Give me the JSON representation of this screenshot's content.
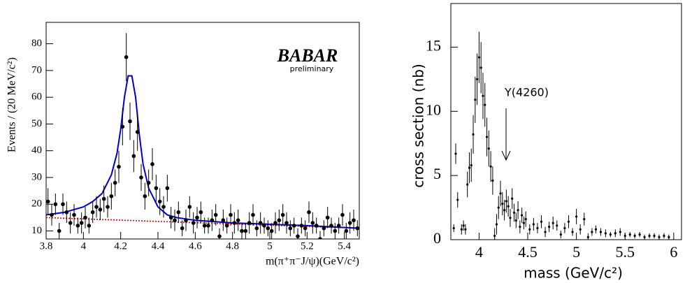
{
  "chart_data": [
    {
      "type": "errorbar",
      "y_label": "Events / (20 MeV/c²)",
      "x_label": "m(π⁺π⁻J/ψ)(GeV/c²)",
      "annotations": [
        "BABAR",
        "preliminary"
      ],
      "xlim": [
        3.8,
        5.48
      ],
      "ylim": [
        7,
        88
      ],
      "xticks": [
        3.8,
        4,
        4.2,
        4.4,
        4.6,
        4.8,
        5,
        5.2,
        5.4
      ],
      "yticks": [
        10,
        20,
        30,
        40,
        50,
        60,
        70,
        80
      ],
      "color": "#000000",
      "x": [
        3.81,
        3.83,
        3.85,
        3.87,
        3.89,
        3.91,
        3.93,
        3.95,
        3.97,
        3.99,
        4.01,
        4.03,
        4.05,
        4.07,
        4.09,
        4.11,
        4.13,
        4.15,
        4.17,
        4.19,
        4.21,
        4.23,
        4.25,
        4.27,
        4.29,
        4.31,
        4.33,
        4.35,
        4.37,
        4.39,
        4.41,
        4.43,
        4.45,
        4.47,
        4.49,
        4.51,
        4.53,
        4.55,
        4.57,
        4.59,
        4.61,
        4.63,
        4.65,
        4.67,
        4.69,
        4.71,
        4.73,
        4.75,
        4.77,
        4.79,
        4.81,
        4.83,
        4.85,
        4.87,
        4.89,
        4.91,
        4.93,
        4.95,
        4.97,
        4.99,
        5.01,
        5.03,
        5.05,
        5.07,
        5.09,
        5.11,
        5.13,
        5.15,
        5.17,
        5.19,
        5.21,
        5.23,
        5.25,
        5.27,
        5.29,
        5.31,
        5.33,
        5.35,
        5.37,
        5.39,
        5.41,
        5.43,
        5.45,
        5.47
      ],
      "values": [
        21,
        16,
        20,
        10,
        20,
        17,
        13,
        16,
        12,
        13,
        15,
        12,
        17,
        19,
        18,
        22,
        19,
        23,
        28,
        34,
        49,
        75,
        51,
        38,
        47,
        30,
        23,
        28,
        35,
        26,
        21,
        19,
        26,
        15,
        14,
        17,
        11,
        14,
        19,
        13,
        15,
        17,
        12,
        12,
        14,
        16,
        8,
        14,
        12,
        16,
        13,
        14,
        10,
        10,
        13,
        16,
        11,
        13,
        12,
        11,
        10,
        13,
        14,
        16,
        13,
        11,
        12,
        8,
        12,
        11,
        17,
        13,
        12,
        7,
        11,
        15,
        12,
        10,
        12,
        16,
        10,
        13,
        14,
        11
      ],
      "errors": [
        5,
        4,
        4,
        3,
        4,
        4,
        4,
        4,
        3,
        4,
        4,
        3,
        4,
        4,
        4,
        5,
        4,
        5,
        5,
        6,
        7,
        9,
        7,
        6,
        7,
        5,
        5,
        5,
        6,
        5,
        5,
        4,
        5,
        4,
        4,
        4,
        3,
        4,
        4,
        4,
        4,
        4,
        3,
        3,
        4,
        4,
        3,
        4,
        3,
        4,
        4,
        4,
        3,
        3,
        4,
        4,
        3,
        4,
        3,
        3,
        3,
        4,
        4,
        4,
        4,
        3,
        3,
        3,
        3,
        3,
        4,
        4,
        3,
        3,
        3,
        4,
        3,
        3,
        3,
        4,
        3,
        4,
        4,
        3
      ],
      "fit": {
        "color": "#0000cc",
        "x": [
          3.8,
          3.9,
          4.0,
          4.05,
          4.1,
          4.15,
          4.18,
          4.2,
          4.22,
          4.24,
          4.26,
          4.28,
          4.3,
          4.32,
          4.35,
          4.4,
          4.45,
          4.5,
          4.6,
          4.8,
          5.0,
          5.2,
          5.48
        ],
        "values": [
          16,
          17,
          19,
          21,
          24,
          31,
          39,
          48,
          60,
          68,
          68,
          60,
          46,
          35,
          26,
          19,
          16,
          15,
          14,
          13,
          12.5,
          12,
          11
        ]
      },
      "background": {
        "color": "#dd0000",
        "x": [
          3.8,
          5.48
        ],
        "values": [
          15,
          11
        ]
      }
    },
    {
      "type": "errorbar",
      "y_label": "cross section (nb)",
      "x_label": "mass (GeV/c²)",
      "annotations": [
        "Y(4260)"
      ],
      "xlim": [
        3.71,
        6.08
      ],
      "ylim": [
        0,
        18.4
      ],
      "xticks": [
        4,
        4.5,
        5,
        5.5,
        6
      ],
      "yticks": [
        0,
        5,
        10,
        15
      ],
      "color": "#000000",
      "x": [
        3.74,
        3.76,
        3.78,
        3.82,
        3.84,
        3.86,
        3.88,
        3.9,
        3.92,
        3.94,
        3.96,
        3.98,
        4,
        4.02,
        4.04,
        4.06,
        4.08,
        4.1,
        4.12,
        4.14,
        4.16,
        4.18,
        4.2,
        4.22,
        4.24,
        4.26,
        4.28,
        4.3,
        4.32,
        4.34,
        4.36,
        4.38,
        4.4,
        4.42,
        4.44,
        4.46,
        4.48,
        4.52,
        4.56,
        4.6,
        4.64,
        4.68,
        4.72,
        4.76,
        4.8,
        4.84,
        4.88,
        4.92,
        4.96,
        5,
        5.04,
        5.08,
        5.12,
        5.16,
        5.2,
        5.25,
        5.3,
        5.35,
        5.4,
        5.45,
        5.5,
        5.55,
        5.6,
        5.65,
        5.7,
        5.75,
        5.8,
        5.85,
        5.9,
        5.95
      ],
      "values": [
        0.9,
        6.7,
        3.1,
        0.8,
        1.1,
        0.8,
        4.3,
        5.6,
        5.8,
        8.2,
        10.9,
        12.5,
        14.2,
        13.4,
        11.2,
        10.5,
        8,
        7.1,
        5.7,
        4.6,
        0.3,
        1.2,
        2.5,
        3.6,
        2.8,
        2.3,
        3,
        2.6,
        1.7,
        3.2,
        2.1,
        1.5,
        2.3,
        1,
        1.9,
        1.3,
        1.6,
        0.8,
        1.2,
        0.9,
        1.4,
        0.6,
        1,
        1.3,
        1.1,
        0.4,
        0.9,
        1.4,
        0.6,
        1.8,
        0.8,
        1.6,
        0.2,
        0.6,
        0.8,
        0.6,
        0.5,
        0.4,
        0.5,
        0.6,
        0.3,
        0.4,
        0.3,
        0.4,
        0.2,
        0.3,
        0.3,
        0.2,
        0.3,
        0.2
      ],
      "errors": [
        0.3,
        0.8,
        0.6,
        0.4,
        0.4,
        0.4,
        1,
        1.2,
        1.3,
        1.5,
        1.8,
        2,
        2,
        2,
        1.8,
        1.7,
        1.5,
        1.4,
        1.2,
        1.1,
        0.6,
        0.8,
        0.9,
        1,
        0.9,
        0.8,
        0.9,
        0.8,
        0.7,
        0.8,
        0.7,
        0.6,
        0.7,
        0.5,
        0.6,
        0.5,
        0.6,
        0.4,
        0.5,
        0.4,
        0.5,
        0.4,
        0.4,
        0.5,
        0.4,
        0.3,
        0.4,
        0.5,
        0.3,
        0.6,
        0.4,
        0.5,
        0.3,
        0.3,
        0.3,
        0.3,
        0.3,
        0.2,
        0.3,
        0.3,
        0.2,
        0.2,
        0.2,
        0.2,
        0.2,
        0.2,
        0.2,
        0.2,
        0.2,
        0.2
      ]
    }
  ]
}
